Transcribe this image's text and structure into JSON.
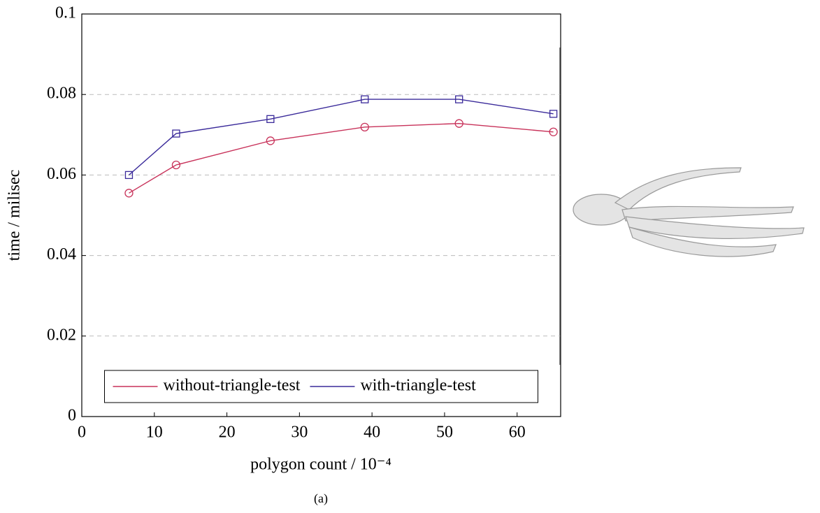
{
  "chart_data": {
    "type": "line",
    "xlabel": "polygon count / 10⁻⁴",
    "ylabel": "time / milisec",
    "caption": "(a)",
    "x": [
      6.5,
      13,
      26,
      39,
      52,
      65
    ],
    "series": [
      {
        "name": "without-triangle-test",
        "color": "#c8325a",
        "marker": "circle",
        "values": [
          0.0555,
          0.0625,
          0.0685,
          0.0719,
          0.0728,
          0.0707
        ]
      },
      {
        "name": "with-triangle-test",
        "color": "#3a2a9a",
        "marker": "square",
        "values": [
          0.06,
          0.0703,
          0.0739,
          0.0788,
          0.0788,
          0.0752
        ]
      }
    ],
    "xlim": [
      0,
      66
    ],
    "xticks": [
      0,
      10,
      20,
      30,
      40,
      50,
      60
    ],
    "ylim": [
      0,
      0.1
    ],
    "yticks": [
      0,
      0.02,
      0.04,
      0.06,
      0.08,
      0.1
    ],
    "grid": true,
    "legend": "lower center"
  }
}
